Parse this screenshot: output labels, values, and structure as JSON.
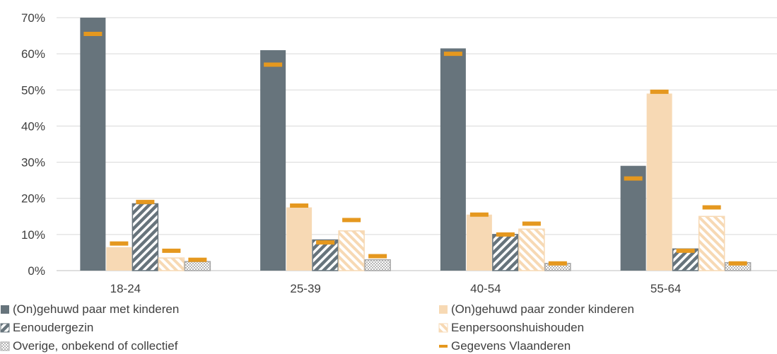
{
  "chart_data": {
    "type": "bar",
    "categories": [
      "18-24",
      "25-39",
      "40-54",
      "55-64"
    ],
    "ylim": [
      0,
      70
    ],
    "yticks": [
      "0%",
      "10%",
      "20%",
      "30%",
      "40%",
      "50%",
      "60%",
      "70%"
    ],
    "grid": true,
    "legend_position": "bottom",
    "series": [
      {
        "name": "(On)gehuwd paar met kinderen",
        "values": [
          70,
          61,
          61.5,
          29
        ],
        "color": "#67747c",
        "pattern": "solid"
      },
      {
        "name": "(On)gehuwd paar zonder kinderen",
        "values": [
          6.5,
          17.5,
          15.5,
          49
        ],
        "color": "#f7d9b4",
        "pattern": "solid"
      },
      {
        "name": "Eenoudergezin",
        "values": [
          18.5,
          8.5,
          10,
          6
        ],
        "color": "#67747c",
        "pattern": "diagonal"
      },
      {
        "name": "Eenpersoonshuishouden",
        "values": [
          3.5,
          11,
          11.5,
          15
        ],
        "color": "#f7d9b4",
        "pattern": "diagonal"
      },
      {
        "name": "Overige, onbekend of collectief",
        "values": [
          2.5,
          3,
          2,
          2.2
        ],
        "color": "#a6a6a6",
        "pattern": "checker"
      }
    ],
    "reference": {
      "name": "Gegevens Vlaanderen",
      "color": "#e5981f",
      "values": [
        [
          65.5,
          7.5,
          19,
          5.5,
          3
        ],
        [
          57,
          18,
          7.8,
          14,
          4
        ],
        [
          60,
          15.5,
          10,
          13,
          2
        ],
        [
          25.5,
          49.5,
          5.5,
          17.5,
          2
        ]
      ]
    }
  }
}
